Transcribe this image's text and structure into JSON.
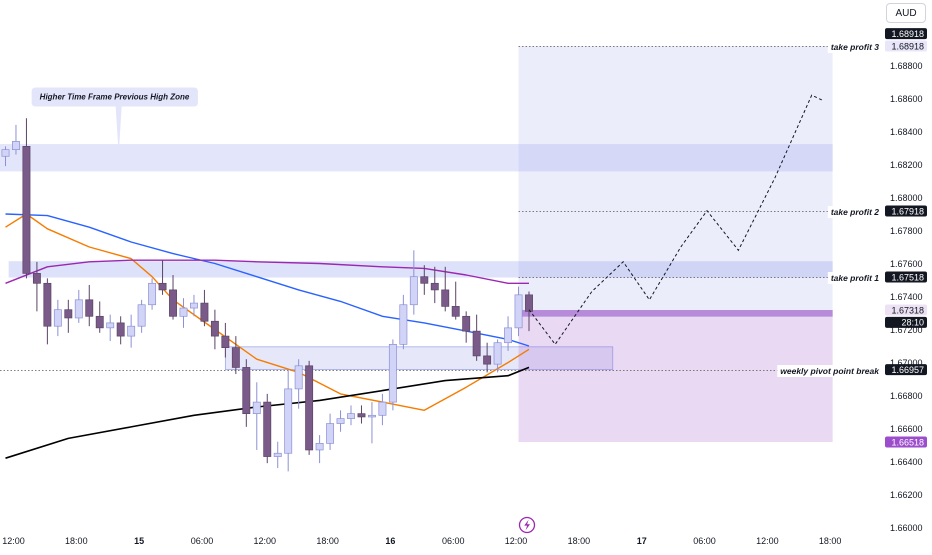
{
  "currency_label": "AUD",
  "chart_data": {
    "type": "candlestick",
    "y_range": [
      1.66,
      1.69
    ],
    "y_ticks": [
      "1.66000",
      "1.66200",
      "1.66400",
      "1.66600",
      "1.66800",
      "1.67000",
      "1.67200",
      "1.67400",
      "1.67600",
      "1.67800",
      "1.68000",
      "1.68200",
      "1.68400",
      "1.68600",
      "1.68800"
    ],
    "x_ticks": [
      {
        "label": "12:00",
        "bar": 0,
        "bold": false
      },
      {
        "label": "18:00",
        "bar": 6,
        "bold": false
      },
      {
        "label": "15",
        "bar": 12,
        "bold": true
      },
      {
        "label": "06:00",
        "bar": 18,
        "bold": false
      },
      {
        "label": "12:00",
        "bar": 24,
        "bold": false
      },
      {
        "label": "18:00",
        "bar": 30,
        "bold": false
      },
      {
        "label": "16",
        "bar": 36,
        "bold": true
      },
      {
        "label": "06:00",
        "bar": 42,
        "bold": false
      },
      {
        "label": "12:00",
        "bar": 48,
        "bold": false
      },
      {
        "label": "18:00",
        "bar": 54,
        "bold": false
      },
      {
        "label": "17",
        "bar": 60,
        "bold": true
      },
      {
        "label": "06:00",
        "bar": 66,
        "bold": false
      },
      {
        "label": "12:00",
        "bar": 72,
        "bold": false
      },
      {
        "label": "18:00",
        "bar": 78,
        "bold": false
      }
    ],
    "candles": [
      [
        1.6825,
        1.6831,
        1.6819,
        1.6829
      ],
      [
        1.6829,
        1.6844,
        1.6826,
        1.6834
      ],
      [
        1.6831,
        1.6848,
        1.6751,
        1.6754
      ],
      [
        1.6754,
        1.6761,
        1.6731,
        1.6748
      ],
      [
        1.6748,
        1.6751,
        1.6711,
        1.6722
      ],
      [
        1.6722,
        1.6738,
        1.6716,
        1.6732
      ],
      [
        1.6732,
        1.6738,
        1.6718,
        1.6727
      ],
      [
        1.6727,
        1.6744,
        1.6724,
        1.6738
      ],
      [
        1.6738,
        1.6747,
        1.6722,
        1.6728
      ],
      [
        1.6728,
        1.6737,
        1.6718,
        1.6721
      ],
      [
        1.6721,
        1.6729,
        1.6713,
        1.6724
      ],
      [
        1.6724,
        1.6728,
        1.6711,
        1.6716
      ],
      [
        1.6716,
        1.6729,
        1.6709,
        1.6722
      ],
      [
        1.6722,
        1.6738,
        1.6718,
        1.6735
      ],
      [
        1.6735,
        1.6751,
        1.6732,
        1.6748
      ],
      [
        1.6748,
        1.6762,
        1.6741,
        1.6744
      ],
      [
        1.6744,
        1.6753,
        1.6726,
        1.6728
      ],
      [
        1.6728,
        1.6739,
        1.6721,
        1.6733
      ],
      [
        1.6733,
        1.6741,
        1.6728,
        1.6736
      ],
      [
        1.6736,
        1.6744,
        1.6722,
        1.6725
      ],
      [
        1.6725,
        1.6732,
        1.6708,
        1.6716
      ],
      [
        1.6716,
        1.6724,
        1.6703,
        1.6709
      ],
      [
        1.6709,
        1.6716,
        1.6693,
        1.6697
      ],
      [
        1.6697,
        1.6702,
        1.6661,
        1.6669
      ],
      [
        1.6669,
        1.6688,
        1.6647,
        1.6676
      ],
      [
        1.6676,
        1.6681,
        1.6639,
        1.6643
      ],
      [
        1.6643,
        1.6652,
        1.6636,
        1.6645
      ],
      [
        1.6645,
        1.6696,
        1.6634,
        1.6684
      ],
      [
        1.6684,
        1.6702,
        1.6672,
        1.6698
      ],
      [
        1.6698,
        1.6701,
        1.6644,
        1.6647
      ],
      [
        1.6647,
        1.6656,
        1.6639,
        1.6651
      ],
      [
        1.6651,
        1.6669,
        1.6647,
        1.6663
      ],
      [
        1.6663,
        1.6671,
        1.6658,
        1.6666
      ],
      [
        1.6666,
        1.6674,
        1.6662,
        1.6669
      ],
      [
        1.6669,
        1.6674,
        1.6663,
        1.6667
      ],
      [
        1.6667,
        1.6676,
        1.6651,
        1.6668
      ],
      [
        1.6668,
        1.6681,
        1.6662,
        1.6676
      ],
      [
        1.6676,
        1.6714,
        1.6671,
        1.6711
      ],
      [
        1.6711,
        1.6741,
        1.6708,
        1.6735
      ],
      [
        1.6735,
        1.6768,
        1.6729,
        1.6752
      ],
      [
        1.6752,
        1.6759,
        1.6741,
        1.6748
      ],
      [
        1.6748,
        1.6758,
        1.6736,
        1.6744
      ],
      [
        1.6744,
        1.6758,
        1.6731,
        1.6734
      ],
      [
        1.6734,
        1.6749,
        1.6726,
        1.6728
      ],
      [
        1.6728,
        1.6731,
        1.6712,
        1.6719
      ],
      [
        1.6719,
        1.6729,
        1.6701,
        1.6704
      ],
      [
        1.6704,
        1.6712,
        1.6694,
        1.6699
      ],
      [
        1.6699,
        1.6714,
        1.6694,
        1.6712
      ],
      [
        1.6712,
        1.6728,
        1.6707,
        1.6721
      ],
      [
        1.6721,
        1.6746,
        1.6716,
        1.6741
      ],
      [
        1.6741,
        1.6743,
        1.6719,
        1.6731
      ]
    ],
    "series": [
      {
        "color": "#2962ff",
        "values": [
          [
            0,
            1.679
          ],
          [
            4,
            1.6789
          ],
          [
            8,
            1.6782
          ],
          [
            12,
            1.6773
          ],
          [
            16,
            1.6766
          ],
          [
            20,
            1.676
          ],
          [
            24,
            1.6752
          ],
          [
            28,
            1.6744
          ],
          [
            32,
            1.6737
          ],
          [
            36,
            1.6728
          ],
          [
            40,
            1.6724
          ],
          [
            44,
            1.6719
          ],
          [
            48,
            1.6714
          ],
          [
            50,
            1.671
          ]
        ]
      },
      {
        "color": "#f57c00",
        "values": [
          [
            0,
            1.6782
          ],
          [
            2,
            1.679
          ],
          [
            4,
            1.6781
          ],
          [
            8,
            1.677
          ],
          [
            12,
            1.6763
          ],
          [
            14,
            1.6752
          ],
          [
            16,
            1.6738
          ],
          [
            20,
            1.672
          ],
          [
            24,
            1.6702
          ],
          [
            28,
            1.6694
          ],
          [
            32,
            1.6681
          ],
          [
            36,
            1.6676
          ],
          [
            40,
            1.6671
          ],
          [
            44,
            1.6685
          ],
          [
            48,
            1.67
          ],
          [
            50,
            1.6708
          ]
        ]
      },
      {
        "color": "#9c27b0",
        "values": [
          [
            0,
            1.6748
          ],
          [
            4,
            1.6758
          ],
          [
            8,
            1.6761
          ],
          [
            12,
            1.6762
          ],
          [
            20,
            1.6762
          ],
          [
            24,
            1.6761
          ],
          [
            30,
            1.676
          ],
          [
            36,
            1.6758
          ],
          [
            40,
            1.6757
          ],
          [
            44,
            1.6753
          ],
          [
            48,
            1.6748
          ],
          [
            50,
            1.6748
          ]
        ]
      },
      {
        "color": "#000000",
        "values": [
          [
            0,
            1.6642
          ],
          [
            6,
            1.6654
          ],
          [
            12,
            1.6661
          ],
          [
            18,
            1.6668
          ],
          [
            24,
            1.6673
          ],
          [
            30,
            1.6677
          ],
          [
            36,
            1.6683
          ],
          [
            42,
            1.6689
          ],
          [
            48,
            1.6692
          ],
          [
            50,
            1.6697
          ]
        ]
      }
    ],
    "zones": [
      {
        "name": "higher-tf-high-zone",
        "x_from": -1,
        "x_to": 79,
        "y_from": 1.68158,
        "y_to": 1.68324,
        "color": "rgba(170,180,240,0.33)"
      },
      {
        "name": "resistance-zone",
        "x_from": 0.3,
        "x_to": 79,
        "y_from": 1.67515,
        "y_to": 1.67614,
        "color": "rgba(170,180,240,0.40)"
      },
      {
        "name": "support-zone",
        "x_from": 21,
        "x_to": 58,
        "y_from": 1.66957,
        "y_to": 1.67095,
        "color": "rgba(200,205,245,0.45)"
      },
      {
        "name": "profit-zone",
        "x_from": 49,
        "x_to": 79,
        "y_from": 1.67318,
        "y_to": 1.68918,
        "color": "rgba(160,165,235,0.20)"
      },
      {
        "name": "stop-zone",
        "x_from": 49,
        "x_to": 79,
        "y_from": 1.66518,
        "y_to": 1.67318,
        "color": "rgba(170,110,210,0.26)"
      },
      {
        "name": "entry-bar",
        "x_from": 49,
        "x_to": 79,
        "y_from": 1.67278,
        "y_to": 1.67318,
        "color": "rgba(150,90,200,0.62)"
      }
    ],
    "levels": [
      {
        "label": "take profit 3",
        "price": 1.68918,
        "x_from": 49,
        "value_label": "1.68918"
      },
      {
        "label": "take profit 2",
        "price": 1.67918,
        "x_from": 49,
        "value_label": "1.67918"
      },
      {
        "label": "take profit 1",
        "price": 1.67518,
        "x_from": 49,
        "value_label": "1.67518"
      },
      {
        "label": "weekly pivot point break",
        "price": 1.66957,
        "x_from": -1,
        "value_label": "1.66957"
      }
    ],
    "projection": [
      [
        50,
        1.6732
      ],
      [
        52.5,
        1.6711
      ],
      [
        56,
        1.6743
      ],
      [
        59,
        1.6761
      ],
      [
        61.5,
        1.6738
      ],
      [
        64.5,
        1.677
      ],
      [
        67,
        1.6792
      ],
      [
        70,
        1.6768
      ],
      [
        73.5,
        1.6812
      ],
      [
        77,
        1.6862
      ],
      [
        78,
        1.6859
      ]
    ],
    "annotation": {
      "text": "Higher Time Frame Previous High Zone",
      "x": 2.5,
      "y": 1.68615
    },
    "price_badges": [
      {
        "text": "1.68918",
        "price": 1.68993,
        "bg": "#131722",
        "fg": "#ffffff"
      },
      {
        "text": "1.68918",
        "price": 1.68918,
        "bg": "#e8e6f8",
        "fg": "#131722"
      },
      {
        "text": "1.67918",
        "price": 1.67918,
        "bg": "#131722",
        "fg": "#ffffff"
      },
      {
        "text": "1.67518",
        "price": 1.67518,
        "bg": "#131722",
        "fg": "#ffffff"
      },
      {
        "text": "1.67318",
        "price": 1.67318,
        "bg": "#ece2f4",
        "fg": "#131722"
      },
      {
        "text": "28:10",
        "price": 1.67243,
        "bg": "#131722",
        "fg": "#ffffff"
      },
      {
        "text": "1.66957",
        "price": 1.66957,
        "bg": "#131722",
        "fg": "#ffffff"
      },
      {
        "text": "1.66518",
        "price": 1.66518,
        "bg": "#9c4dcc",
        "fg": "#ffffff"
      }
    ]
  }
}
